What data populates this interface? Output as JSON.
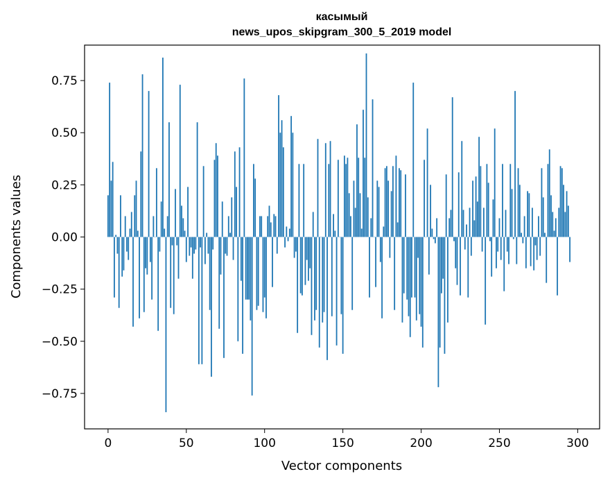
{
  "chart_data": {
    "type": "bar",
    "title": "касымый",
    "subtitle": "news_upos_skipgram_300_5_2019 model",
    "xlabel": "Vector components",
    "ylabel": "Components values",
    "xlim": [
      -15,
      314
    ],
    "ylim": [
      -0.92,
      0.92
    ],
    "x_ticks": [
      0,
      50,
      100,
      150,
      200,
      250,
      300
    ],
    "y_ticks": [
      -0.75,
      -0.5,
      -0.25,
      0.0,
      0.25,
      0.5,
      0.75
    ],
    "x_tick_labels": [
      "0",
      "50",
      "100",
      "150",
      "200",
      "250",
      "300"
    ],
    "y_tick_labels": [
      "−0.75",
      "−0.50",
      "−0.25",
      "0.00",
      "0.25",
      "0.50",
      "0.75"
    ],
    "color": "#1f77b4",
    "grid": false,
    "values": [
      0.2,
      0.74,
      0.27,
      0.36,
      -0.29,
      0.01,
      -0.08,
      -0.34,
      0.2,
      -0.19,
      -0.16,
      0.1,
      -0.07,
      -0.11,
      0.04,
      0.12,
      -0.43,
      0.2,
      0.27,
      0.03,
      -0.39,
      0.41,
      0.78,
      -0.36,
      -0.15,
      -0.18,
      0.7,
      -0.12,
      -0.3,
      0.1,
      0.0,
      0.33,
      -0.45,
      -0.07,
      0.17,
      0.86,
      0.04,
      -0.84,
      0.1,
      0.55,
      -0.34,
      -0.04,
      -0.37,
      0.23,
      -0.04,
      -0.2,
      0.73,
      0.15,
      0.09,
      0.03,
      -0.12,
      0.24,
      -0.09,
      -0.05,
      -0.2,
      -0.08,
      -0.06,
      0.55,
      -0.61,
      -0.05,
      -0.61,
      0.34,
      -0.13,
      0.02,
      -0.08,
      -0.35,
      -0.67,
      -0.06,
      0.37,
      0.45,
      0.39,
      -0.44,
      -0.18,
      0.17,
      -0.58,
      -0.08,
      -0.09,
      0.1,
      0.02,
      0.19,
      -0.11,
      0.41,
      0.24,
      -0.5,
      0.43,
      -0.21,
      -0.56,
      0.76,
      -0.3,
      -0.3,
      -0.3,
      -0.4,
      -0.76,
      0.35,
      0.28,
      -0.35,
      -0.33,
      0.1,
      0.1,
      -0.36,
      -0.29,
      -0.39,
      0.1,
      0.15,
      0.07,
      -0.24,
      0.11,
      0.1,
      -0.08,
      0.68,
      0.5,
      0.56,
      0.43,
      -0.05,
      0.05,
      -0.02,
      0.04,
      0.58,
      0.5,
      -0.1,
      -0.07,
      -0.46,
      0.35,
      -0.27,
      -0.28,
      0.35,
      -0.23,
      -0.11,
      -0.21,
      -0.15,
      -0.47,
      0.12,
      -0.4,
      -0.35,
      0.47,
      -0.53,
      0.0,
      -0.41,
      -0.36,
      0.45,
      -0.59,
      0.35,
      0.46,
      -0.38,
      0.11,
      0.03,
      -0.52,
      0.37,
      0.0,
      -0.37,
      -0.56,
      0.39,
      0.35,
      0.38,
      0.21,
      0.1,
      -0.35,
      0.27,
      0.14,
      0.54,
      0.38,
      0.21,
      0.04,
      0.61,
      0.38,
      0.88,
      0.19,
      -0.29,
      0.09,
      0.66,
      0.0,
      -0.24,
      0.27,
      0.24,
      -0.12,
      -0.39,
      0.05,
      0.33,
      0.34,
      0.27,
      -0.1,
      0.22,
      0.34,
      -0.35,
      0.39,
      0.07,
      0.33,
      0.32,
      -0.41,
      -0.27,
      0.3,
      -0.3,
      -0.38,
      -0.48,
      -0.29,
      0.74,
      -0.29,
      -0.4,
      -0.1,
      -0.37,
      -0.43,
      -0.53,
      0.37,
      0.0,
      0.52,
      -0.18,
      0.25,
      0.04,
      -0.01,
      -0.03,
      0.09,
      -0.72,
      -0.53,
      -0.27,
      -0.2,
      -0.56,
      0.3,
      -0.41,
      0.09,
      0.13,
      0.67,
      -0.02,
      -0.15,
      -0.23,
      0.31,
      -0.28,
      0.46,
      0.13,
      -0.06,
      0.06,
      -0.29,
      0.14,
      -0.09,
      0.27,
      0.08,
      0.29,
      0.17,
      0.48,
      0.34,
      -0.07,
      0.14,
      -0.42,
      0.35,
      0.26,
      -0.02,
      -0.19,
      0.18,
      0.52,
      -0.15,
      -0.07,
      0.09,
      -0.11,
      0.35,
      -0.26,
      0.13,
      -0.07,
      -0.13,
      0.35,
      0.23,
      -0.01,
      0.7,
      -0.13,
      0.33,
      0.25,
      0.02,
      -0.03,
      0.1,
      -0.15,
      0.22,
      0.21,
      -0.14,
      0.14,
      -0.16,
      -0.04,
      -0.11,
      0.1,
      -0.09,
      0.33,
      0.19,
      0.02,
      -0.22,
      0.35,
      0.42,
      0.2,
      0.12,
      0.03,
      0.09,
      -0.28,
      0.14,
      0.34,
      0.33,
      0.25,
      0.12,
      0.22,
      0.15,
      -0.12
    ]
  }
}
